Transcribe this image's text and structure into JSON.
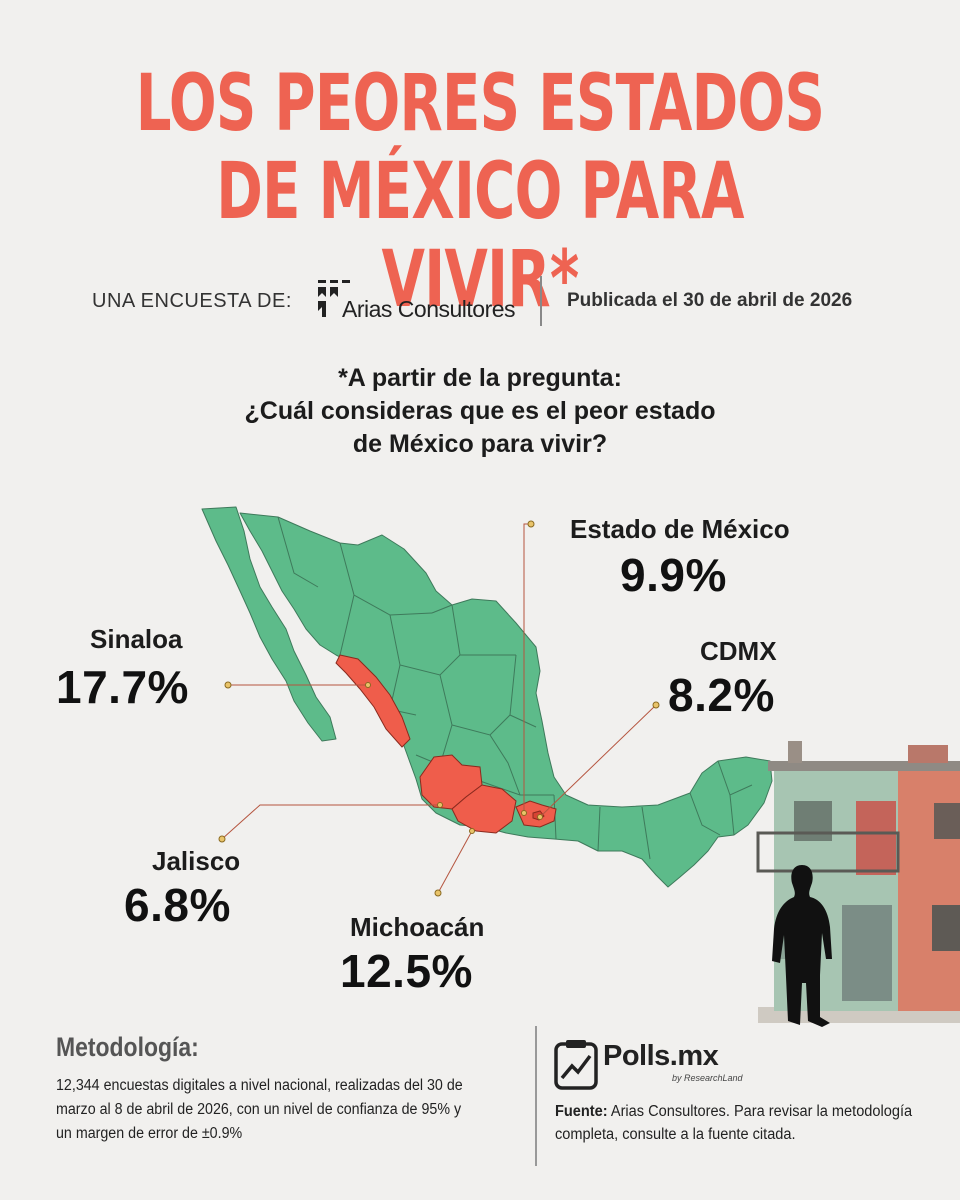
{
  "header": {
    "title_line1": "LOS PEORES ESTADOS",
    "title_line2": "DE MÉXICO PARA VIVIR*"
  },
  "credits": {
    "label": "UNA ENCUESTA DE:",
    "pollster": "Arias Consultores",
    "published": "Publicada el 30 de abril de 2026"
  },
  "question": {
    "line1": "*A partir de la pregunta:",
    "line2": "¿Cuál consideras que es el peor estado",
    "line3": "de México para vivir?"
  },
  "results": [
    {
      "state": "Estado de México",
      "value": "9.9%"
    },
    {
      "state": "Sinaloa",
      "value": "17.7%"
    },
    {
      "state": "CDMX",
      "value": "8.2%"
    },
    {
      "state": "Jalisco",
      "value": "6.8%"
    },
    {
      "state": "Michoacán",
      "value": "12.5%"
    }
  ],
  "colors": {
    "accent": "#ee6352",
    "map_fill": "#5dbb8a",
    "highlight": "#ef5d4b",
    "background": "#f1f0ee"
  },
  "methodology": {
    "title": "Metodología:",
    "text": "12,344 encuestas digitales a nivel nacional, realizadas del 30 de marzo al 8 de abril de 2026, con un nivel de confianza de 95% y un margen de error de ±0.9%"
  },
  "source": {
    "brand": "Polls.mx",
    "brand_sub": "by ResearchLand",
    "label": "Fuente:",
    "text": "Arias Consultores.  Para revisar la metodología completa, consulte a la fuente citada."
  }
}
